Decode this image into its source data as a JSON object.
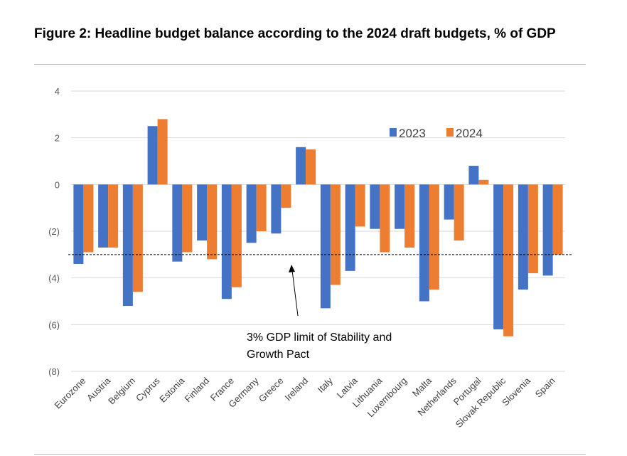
{
  "title": "Figure 2: Headline budget balance according to the 2024 draft budgets, % of GDP",
  "chart_data": {
    "type": "bar",
    "categories": [
      "Eurozone",
      "Austria",
      "Belgium",
      "Cyprus",
      "Estonia",
      "Finland",
      "France",
      "Germany",
      "Greece",
      "Ireland",
      "Italy",
      "Latvia",
      "Lithuania",
      "Luxembourg",
      "Malta",
      "Netherlands",
      "Portugal",
      "Slovak Republic",
      "Slovenia",
      "Spain"
    ],
    "series": [
      {
        "name": "2023",
        "color": "#4472c4",
        "values": [
          -3.4,
          -2.7,
          -5.2,
          2.5,
          -3.3,
          -2.4,
          -4.9,
          -2.5,
          -2.1,
          1.6,
          -5.3,
          -3.7,
          -1.9,
          -1.9,
          -5.0,
          -1.5,
          0.8,
          -6.2,
          -4.5,
          -3.9
        ]
      },
      {
        "name": "2024",
        "color": "#ed7d31",
        "values": [
          -2.9,
          -2.7,
          -4.6,
          2.8,
          -2.9,
          -3.2,
          -4.4,
          -2.0,
          -1.0,
          1.5,
          -4.3,
          -1.8,
          -2.9,
          -2.7,
          -4.5,
          -2.4,
          0.2,
          -6.5,
          -3.8,
          -3.0
        ]
      }
    ],
    "ylim": [
      -8,
      4
    ],
    "yticks": [
      4,
      2,
      0,
      -2,
      -4,
      -6,
      -8
    ],
    "ytick_labels": [
      "4",
      "2",
      "0",
      "(2)",
      "(4)",
      "(6)",
      "(8)"
    ],
    "reference_line": {
      "value": -3,
      "style": "dashed"
    },
    "annotation": [
      "3% GDP limit of Stability and",
      "Growth Pact"
    ],
    "legend_position": "top-right",
    "grid": true
  }
}
